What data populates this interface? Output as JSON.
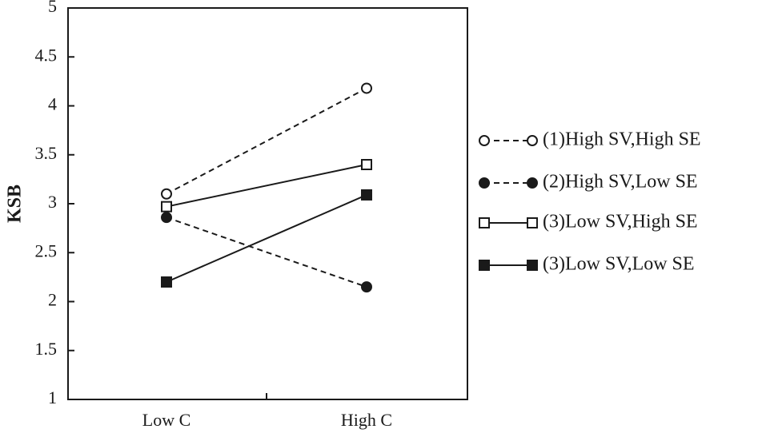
{
  "chart_data": {
    "type": "line",
    "categories": [
      "Low C",
      "High C"
    ],
    "ylabel": "KSB",
    "xlabel": "",
    "ylim": [
      1,
      5
    ],
    "yticks": [
      "1",
      "1.5",
      "2",
      "2.5",
      "3",
      "3.5",
      "4",
      "4.5",
      "5"
    ],
    "grid": false,
    "legend_position": "right",
    "series": [
      {
        "name": "(1)High SV,High SE",
        "values": [
          3.1,
          4.18
        ],
        "line": "dashed",
        "marker": "circle-open",
        "color": "#1a1a1a"
      },
      {
        "name": "(2)High SV,Low SE",
        "values": [
          2.86,
          2.15
        ],
        "line": "dashed",
        "marker": "circle-filled",
        "color": "#1a1a1a"
      },
      {
        "name": "(3)Low SV,High SE",
        "values": [
          2.97,
          3.4
        ],
        "line": "solid",
        "marker": "square-open",
        "color": "#1a1a1a"
      },
      {
        "name": "(3)Low SV,Low SE",
        "values": [
          2.2,
          3.09
        ],
        "line": "solid",
        "marker": "square-filled",
        "color": "#1a1a1a"
      }
    ]
  }
}
